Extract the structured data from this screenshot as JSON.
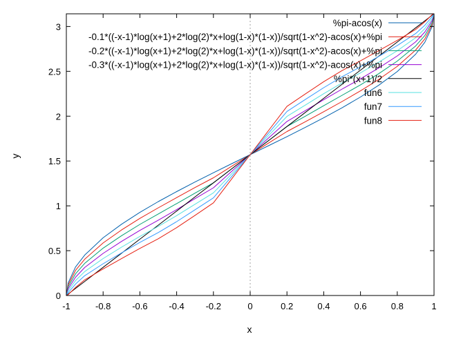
{
  "chart_data": {
    "type": "line",
    "title": "",
    "xlabel": "x",
    "ylabel": "y",
    "xlim": [
      -1,
      1
    ],
    "ylim": [
      0,
      3.14159
    ],
    "x_ticks": [
      -1,
      -0.8,
      -0.6,
      -0.4,
      -0.2,
      0,
      0.2,
      0.4,
      0.6,
      0.8,
      1
    ],
    "x_tick_labels": [
      "-1",
      "-0.8",
      "-0.6",
      "-0.4",
      "-0.2",
      "0",
      "0.2",
      "0.4",
      "0.6",
      "0.8",
      "1"
    ],
    "y_ticks": [
      0,
      0.5,
      1,
      1.5,
      2,
      2.5,
      3
    ],
    "y_tick_labels": [
      "0",
      "0.5",
      "1",
      "1.5",
      "2",
      "2.5",
      "3"
    ],
    "grid": false,
    "zero_line_x": true,
    "legend_position": "top-right",
    "x": [
      -1,
      -0.99,
      -0.95,
      -0.9,
      -0.8,
      -0.7,
      -0.6,
      -0.5,
      -0.4,
      -0.3,
      -0.2,
      -0.1,
      0,
      0.1,
      0.2,
      0.3,
      0.4,
      0.5,
      0.6,
      0.7,
      0.8,
      0.9,
      0.95,
      0.99,
      1
    ],
    "series": [
      {
        "name": "%pi-acos(x)",
        "color": "#0060ad",
        "values": [
          0,
          0.142,
          0.318,
          0.451,
          0.644,
          0.795,
          0.927,
          1.047,
          1.159,
          1.266,
          1.369,
          1.471,
          1.571,
          1.671,
          1.772,
          1.876,
          1.982,
          2.094,
          2.214,
          2.346,
          2.498,
          2.691,
          2.824,
          3.0,
          3.142
        ]
      },
      {
        "name": "-0.1*((-x-1)*log(x+1)+2*log(2)*x+log(1-x)*(1-x))/sqrt(1-x^2)-acos(x)+%pi",
        "color": "#e51e10",
        "values": [
          0,
          0.12,
          0.28,
          0.405,
          0.586,
          0.731,
          0.86,
          0.978,
          1.092,
          1.204,
          1.313,
          1.442,
          1.571,
          1.7,
          1.829,
          1.938,
          2.05,
          2.164,
          2.282,
          2.411,
          2.556,
          2.737,
          2.862,
          3.022,
          3.142
        ]
      },
      {
        "name": "-0.2*((-x-1)*log(x+1)+2*log(2)*x+log(1-x)*(1-x))/sqrt(1-x^2)-acos(x)+%pi",
        "color": "#009e73",
        "values": [
          0,
          0.098,
          0.242,
          0.359,
          0.528,
          0.667,
          0.793,
          0.909,
          1.025,
          1.142,
          1.257,
          1.414,
          1.571,
          1.728,
          1.885,
          2.0,
          2.117,
          2.233,
          2.349,
          2.475,
          2.614,
          2.783,
          2.9,
          3.044,
          3.142
        ]
      },
      {
        "name": "-0.3*((-x-1)*log(x+1)+2*log(2)*x+log(1-x)*(1-x))/sqrt(1-x^2)-acos(x)+%pi",
        "color": "#9400d3",
        "values": [
          0,
          0.076,
          0.204,
          0.313,
          0.47,
          0.603,
          0.726,
          0.84,
          0.958,
          1.08,
          1.201,
          1.386,
          1.571,
          1.756,
          1.941,
          2.062,
          2.184,
          2.302,
          2.416,
          2.539,
          2.672,
          2.829,
          2.938,
          3.066,
          3.142
        ]
      },
      {
        "name": "%pi*(x+1)/2",
        "color": "#000000",
        "values": [
          0,
          0.016,
          0.079,
          0.157,
          0.314,
          0.471,
          0.628,
          0.785,
          0.942,
          1.1,
          1.257,
          1.414,
          1.571,
          1.728,
          1.885,
          2.042,
          2.199,
          2.356,
          2.513,
          2.67,
          2.827,
          2.985,
          3.063,
          3.126,
          3.142
        ]
      },
      {
        "name": "fun6",
        "color": "#56e0e0",
        "values": [
          0,
          0.054,
          0.166,
          0.267,
          0.412,
          0.539,
          0.659,
          0.771,
          0.891,
          1.018,
          1.145,
          1.358,
          1.571,
          1.784,
          1.997,
          2.124,
          2.251,
          2.371,
          2.483,
          2.603,
          2.73,
          2.875,
          2.976,
          3.088,
          3.142
        ]
      },
      {
        "name": "fun7",
        "color": "#3399ff",
        "values": [
          0,
          0.032,
          0.128,
          0.221,
          0.354,
          0.475,
          0.592,
          0.702,
          0.824,
          0.956,
          1.089,
          1.33,
          1.571,
          1.812,
          2.053,
          2.186,
          2.318,
          2.44,
          2.55,
          2.667,
          2.788,
          2.921,
          3.014,
          3.11,
          3.142
        ]
      },
      {
        "name": "fun8",
        "color": "#e51e10",
        "values": [
          0,
          0.01,
          0.09,
          0.175,
          0.296,
          0.411,
          0.525,
          0.633,
          0.757,
          0.894,
          1.033,
          1.302,
          1.571,
          1.84,
          2.109,
          2.248,
          2.385,
          2.509,
          2.617,
          2.731,
          2.846,
          2.967,
          3.052,
          3.132,
          3.142
        ]
      }
    ]
  }
}
